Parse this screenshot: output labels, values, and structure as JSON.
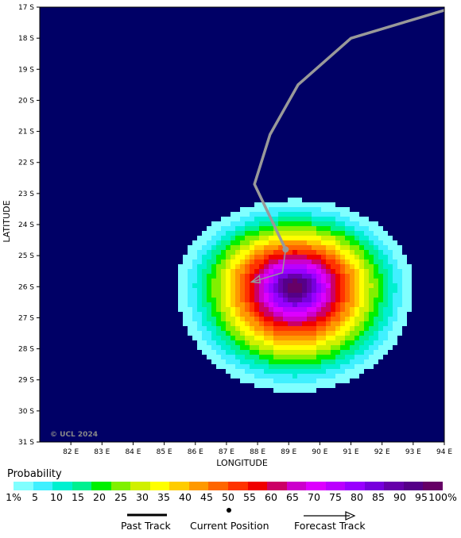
{
  "map": {
    "x_axis_title": "LONGITUDE",
    "y_axis_title": "LATITUDE",
    "copyright": "© UCL 2024",
    "lon_ticks": [
      "82 E",
      "83 E",
      "84 E",
      "85 E",
      "86 E",
      "87 E",
      "88 E",
      "89 E",
      "90 E",
      "91 E",
      "92 E",
      "93 E",
      "94 E"
    ],
    "lat_ticks": [
      "17 S",
      "18 S",
      "19 S",
      "20 S",
      "21 S",
      "22 S",
      "23 S",
      "24 S",
      "25 S",
      "26 S",
      "27 S",
      "28 S",
      "29 S",
      "30 S",
      "31 S"
    ],
    "lon_range": [
      81.0,
      94.0
    ],
    "lat_range": [
      17.0,
      31.0
    ],
    "ocean_color": "#000066",
    "past_track": [
      [
        94.0,
        17.1
      ],
      [
        93.0,
        17.4
      ],
      [
        91.0,
        18.0
      ],
      [
        89.3,
        19.5
      ],
      [
        88.4,
        21.1
      ],
      [
        87.9,
        22.7
      ],
      [
        88.9,
        24.8
      ]
    ],
    "current_position": [
      88.9,
      24.8
    ],
    "forecast_track": [
      [
        88.9,
        24.8
      ],
      [
        88.8,
        25.55
      ],
      [
        87.8,
        25.85
      ]
    ],
    "probability_field": {
      "center": [
        89.2,
        26.0
      ],
      "description_levels_only": true
    }
  },
  "legend": {
    "title": "Probability",
    "colors": [
      "#80ffff",
      "#40f0ff",
      "#00f0d0",
      "#00f090",
      "#00f000",
      "#80f000",
      "#d0f000",
      "#ffff00",
      "#ffcc00",
      "#ff9900",
      "#ff6600",
      "#ff3300",
      "#f00000",
      "#cc0066",
      "#cc00cc",
      "#dd00ff",
      "#bb00ff",
      "#9900ff",
      "#7700dd",
      "#6600aa",
      "#550088",
      "#660066"
    ],
    "tick_labels": [
      "1%",
      "5",
      "10",
      "15",
      "20",
      "25",
      "30",
      "35",
      "40",
      "45",
      "50",
      "55",
      "60",
      "65",
      "70",
      "75",
      "80",
      "85",
      "90",
      "95",
      "100%"
    ],
    "track_key": {
      "past": "Past Track",
      "current": "Current Position",
      "forecast": "Forecast Track"
    }
  }
}
